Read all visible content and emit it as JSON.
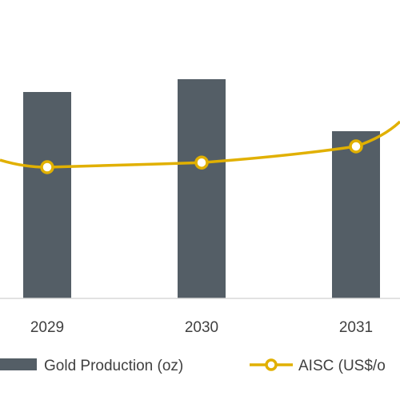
{
  "chart_data": {
    "type": "bar",
    "categories": [
      "2029",
      "2030",
      "2031"
    ],
    "series": [
      {
        "name": "Gold Production (oz)",
        "kind": "bar",
        "color": "#545e66",
        "values": [
          258,
          274,
          209
        ]
      },
      {
        "name": "AISC (US$/o",
        "kind": "line",
        "color": "#e1b000",
        "values": [
          1164,
          1170,
          1191
        ]
      }
    ],
    "title": "",
    "xlabel": "",
    "ylabel": "",
    "grid": false,
    "legend_position": "bottom"
  }
}
